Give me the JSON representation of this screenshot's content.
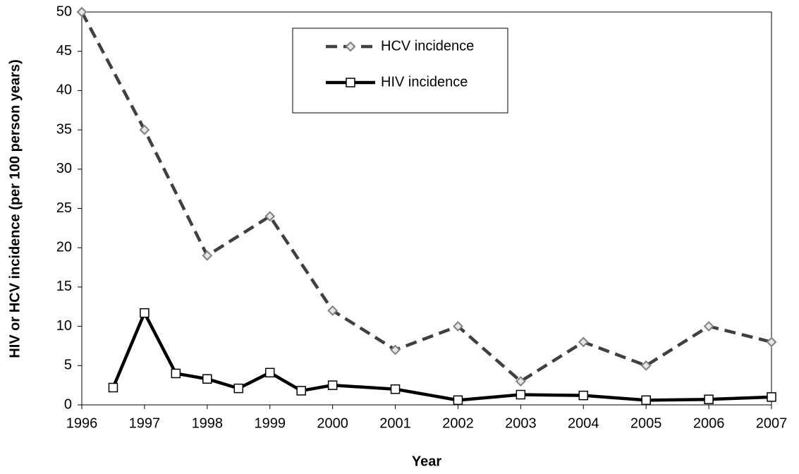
{
  "chart_data": {
    "type": "line",
    "x_label": "Year",
    "y_label": "HIV or HCV incidence (per 100 person years)",
    "xlim": [
      1996,
      2007
    ],
    "xticks": [
      1996,
      1997,
      1998,
      1999,
      2000,
      2001,
      2002,
      2003,
      2004,
      2005,
      2006,
      2007
    ],
    "ylim": [
      0,
      50
    ],
    "yticks": [
      0,
      5,
      10,
      15,
      20,
      25,
      30,
      35,
      40,
      45,
      50
    ],
    "grid": false,
    "legend": "top",
    "series": [
      {
        "name": "HCV incidence",
        "color": "#404040",
        "marker_color": "#808080",
        "dashed": true,
        "marker": "diamond",
        "x": [
          1996,
          1997,
          1998,
          1999,
          2000,
          2001,
          2002,
          2003,
          2004,
          2005,
          2006,
          2007
        ],
        "values": [
          50,
          35,
          19,
          24,
          12,
          7,
          10,
          3,
          8,
          5,
          10,
          8
        ]
      },
      {
        "name": "HIV incidence",
        "color": "#000000",
        "marker_color": "#000000",
        "dashed": false,
        "marker": "square",
        "x": [
          1996.5,
          1997,
          1997.5,
          1998,
          1998.5,
          1999,
          1999.5,
          2000,
          2001,
          2002,
          2003,
          2004,
          2005,
          2006,
          2007
        ],
        "values": [
          2.2,
          11.7,
          4.0,
          3.3,
          2.1,
          4.1,
          1.8,
          2.5,
          2.0,
          0.6,
          1.3,
          1.2,
          0.6,
          0.7,
          1.0
        ]
      }
    ]
  }
}
